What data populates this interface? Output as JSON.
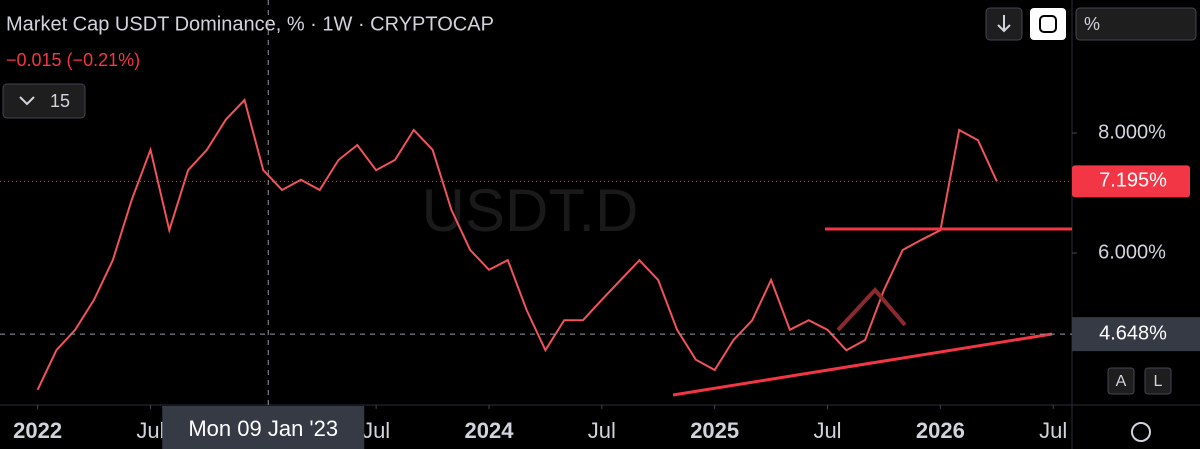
{
  "chart_data": {
    "type": "line",
    "title": "Market Cap USDT Dominance, % · 1W · CRYPTOCAP",
    "subtitle": "−0.015 (−0.21%)",
    "watermark": "USDT.D",
    "x": [
      "2022-01",
      "2022-02",
      "2022-03",
      "2022-04",
      "2022-05",
      "2022-06",
      "2022-07",
      "2022-08",
      "2022-09",
      "2022-10",
      "2022-11",
      "2022-12",
      "2023-01",
      "2023-02",
      "2023-03",
      "2023-04",
      "2023-05",
      "2023-06",
      "2023-07",
      "2023-08",
      "2023-09",
      "2023-10",
      "2023-11",
      "2023-12",
      "2024-01",
      "2024-02",
      "2024-03",
      "2024-04",
      "2024-05",
      "2024-06",
      "2024-07",
      "2024-08",
      "2024-09",
      "2024-10",
      "2024-11",
      "2024-12",
      "2025-01",
      "2025-02",
      "2025-03",
      "2025-04",
      "2025-05",
      "2025-06",
      "2025-07",
      "2025-08",
      "2025-09",
      "2025-10",
      "2025-11",
      "2025-12",
      "2026-01",
      "2026-02",
      "2026-03",
      "2026-04"
    ],
    "series": [
      {
        "name": "USDT.D",
        "color": "#f0535a",
        "values": [
          3.72,
          4.38,
          4.72,
          5.22,
          5.88,
          6.88,
          7.72,
          6.38,
          7.38,
          7.72,
          8.22,
          8.55,
          7.38,
          7.05,
          7.22,
          7.05,
          7.55,
          7.8,
          7.38,
          7.55,
          8.05,
          7.72,
          6.72,
          6.05,
          5.72,
          5.88,
          5.05,
          4.38,
          4.88,
          4.88,
          5.22,
          5.55,
          5.88,
          5.55,
          4.72,
          4.22,
          4.05,
          4.55,
          4.88,
          5.55,
          4.72,
          4.88,
          4.72,
          4.38,
          4.55,
          5.38,
          6.05,
          6.22,
          6.38,
          8.05,
          7.88,
          7.195
        ]
      }
    ],
    "xlim": [
      "2021-11",
      "2026-08"
    ],
    "xticks": [
      {
        "value": "2022-01",
        "label": "2022"
      },
      {
        "value": "2022-07",
        "label": "Jul"
      },
      {
        "value": "2023-07",
        "label": "Jul"
      },
      {
        "value": "2024-01",
        "label": "2024"
      },
      {
        "value": "2024-07",
        "label": "Jul"
      },
      {
        "value": "2025-01",
        "label": "2025"
      },
      {
        "value": "2025-07",
        "label": "Jul"
      },
      {
        "value": "2026-01",
        "label": "2026"
      },
      {
        "value": "2026-07",
        "label": "Jul"
      }
    ],
    "ylim": [
      3.467,
      10.217
    ],
    "yticks": [
      {
        "value": 6,
        "label": "6.000%"
      },
      {
        "value": 8,
        "label": "8.000%"
      }
    ],
    "last_price": {
      "value": 7.195,
      "label": "7.195%"
    },
    "crosshair": {
      "x": "2023-01-09",
      "x_label": "Mon 09 Jan '23",
      "y": {
        "value": 4.648,
        "label": "4.648%"
      }
    }
  },
  "ui": {
    "interval_count": "15",
    "scale_button": "%",
    "auto_button": "A",
    "log_button": "L"
  }
}
